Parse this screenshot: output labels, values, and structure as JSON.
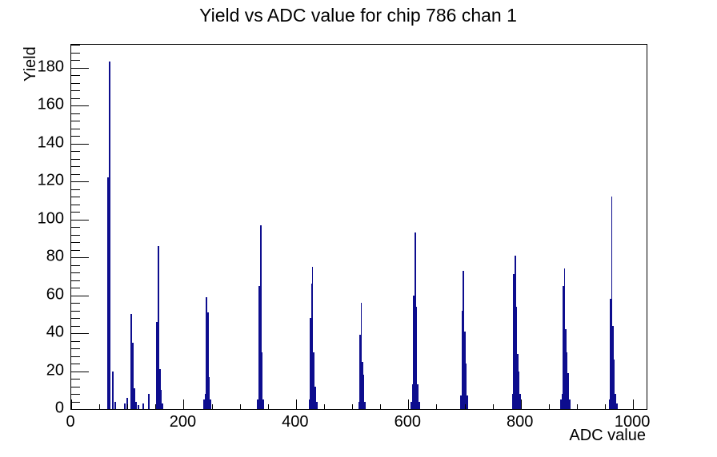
{
  "chart_data": {
    "type": "bar",
    "title": "Yield vs ADC value for chip 786 chan 1",
    "xlabel": "ADC value",
    "ylabel": "Yield",
    "xlim": [
      0,
      1024
    ],
    "ylim": [
      0,
      192
    ],
    "x_major_ticks": [
      0,
      200,
      400,
      600,
      800,
      1000
    ],
    "x_minor_step": 50,
    "y_major_ticks": [
      0,
      20,
      40,
      60,
      80,
      100,
      120,
      140,
      160,
      180
    ],
    "y_minor_step": 4,
    "line_color": "#0d0d8e",
    "axis_color": "#000000",
    "grid": false,
    "legend": "none",
    "bars": [
      {
        "adc": 66,
        "y": 122
      },
      {
        "adc": 69,
        "y": 183
      },
      {
        "adc": 74,
        "y": 20
      },
      {
        "adc": 78,
        "y": 4
      },
      {
        "adc": 96,
        "y": 3
      },
      {
        "adc": 99,
        "y": 6
      },
      {
        "adc": 107,
        "y": 50
      },
      {
        "adc": 110,
        "y": 35
      },
      {
        "adc": 112,
        "y": 11
      },
      {
        "adc": 115,
        "y": 4
      },
      {
        "adc": 120,
        "y": 2
      },
      {
        "adc": 128,
        "y": 3
      },
      {
        "adc": 138,
        "y": 8
      },
      {
        "adc": 152,
        "y": 46
      },
      {
        "adc": 155,
        "y": 86
      },
      {
        "adc": 158,
        "y": 21
      },
      {
        "adc": 160,
        "y": 10
      },
      {
        "adc": 163,
        "y": 3
      },
      {
        "adc": 236,
        "y": 5
      },
      {
        "adc": 239,
        "y": 8
      },
      {
        "adc": 241,
        "y": 59
      },
      {
        "adc": 243,
        "y": 51
      },
      {
        "adc": 245,
        "y": 17
      },
      {
        "adc": 248,
        "y": 5
      },
      {
        "adc": 332,
        "y": 5
      },
      {
        "adc": 335,
        "y": 65
      },
      {
        "adc": 337,
        "y": 97
      },
      {
        "adc": 339,
        "y": 30
      },
      {
        "adc": 342,
        "y": 5
      },
      {
        "adc": 424,
        "y": 5
      },
      {
        "adc": 426,
        "y": 48
      },
      {
        "adc": 428,
        "y": 66
      },
      {
        "adc": 430,
        "y": 75,
        "w": 1
      },
      {
        "adc": 432,
        "y": 30
      },
      {
        "adc": 434,
        "y": 12
      },
      {
        "adc": 437,
        "y": 4
      },
      {
        "adc": 512,
        "y": 4
      },
      {
        "adc": 514,
        "y": 39
      },
      {
        "adc": 516,
        "y": 56,
        "w": 1
      },
      {
        "adc": 518,
        "y": 25
      },
      {
        "adc": 520,
        "y": 18
      },
      {
        "adc": 523,
        "y": 4
      },
      {
        "adc": 605,
        "y": 4
      },
      {
        "adc": 608,
        "y": 13
      },
      {
        "adc": 610,
        "y": 60
      },
      {
        "adc": 612,
        "y": 93
      },
      {
        "adc": 614,
        "y": 54
      },
      {
        "adc": 616,
        "y": 13
      },
      {
        "adc": 619,
        "y": 4
      },
      {
        "adc": 694,
        "y": 7
      },
      {
        "adc": 696,
        "y": 52
      },
      {
        "adc": 698,
        "y": 73
      },
      {
        "adc": 700,
        "y": 41
      },
      {
        "adc": 702,
        "y": 24
      },
      {
        "adc": 705,
        "y": 7
      },
      {
        "adc": 786,
        "y": 8
      },
      {
        "adc": 788,
        "y": 71
      },
      {
        "adc": 790,
        "y": 81
      },
      {
        "adc": 792,
        "y": 54
      },
      {
        "adc": 794,
        "y": 29
      },
      {
        "adc": 796,
        "y": 20
      },
      {
        "adc": 799,
        "y": 8
      },
      {
        "adc": 872,
        "y": 5
      },
      {
        "adc": 874,
        "y": 8
      },
      {
        "adc": 876,
        "y": 65
      },
      {
        "adc": 878,
        "y": 74,
        "w": 1
      },
      {
        "adc": 880,
        "y": 42
      },
      {
        "adc": 882,
        "y": 30
      },
      {
        "adc": 884,
        "y": 19
      },
      {
        "adc": 887,
        "y": 5
      },
      {
        "adc": 958,
        "y": 5
      },
      {
        "adc": 960,
        "y": 58
      },
      {
        "adc": 962,
        "y": 112,
        "w": 1
      },
      {
        "adc": 964,
        "y": 44
      },
      {
        "adc": 966,
        "y": 26
      },
      {
        "adc": 968,
        "y": 8
      },
      {
        "adc": 971,
        "y": 3
      }
    ]
  }
}
